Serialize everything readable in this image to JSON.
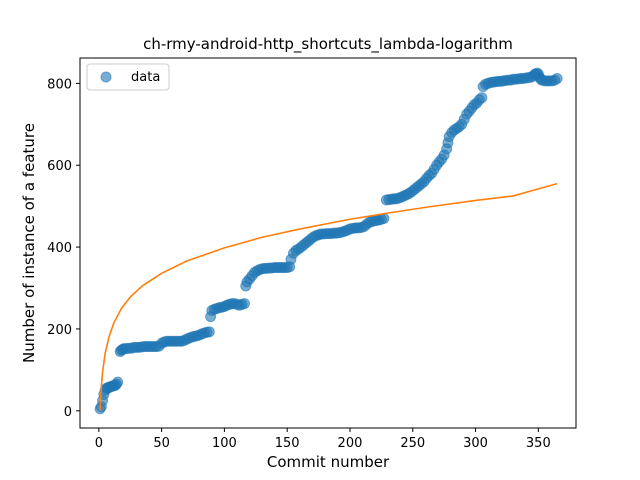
{
  "chart_data": {
    "type": "scatter",
    "title": "ch-rmy-android-http_shortcuts_lambda-logarithm",
    "xlabel": "Commit number",
    "ylabel": "Number of instance of a feature",
    "xlim": [
      -15,
      380
    ],
    "ylim": [
      -42,
      862
    ],
    "xticks": [
      0,
      50,
      100,
      150,
      200,
      250,
      300,
      350
    ],
    "yticks": [
      0,
      200,
      400,
      600,
      800
    ],
    "grid": false,
    "legend": {
      "position": "top-left",
      "entries": [
        "data"
      ]
    },
    "colors": {
      "data": "#1f77b4",
      "fit": "#ff7f0e"
    },
    "series": [
      {
        "name": "data",
        "marker": "circle",
        "points": [
          [
            1,
            5
          ],
          [
            2,
            10
          ],
          [
            3,
            25
          ],
          [
            4,
            40
          ],
          [
            5,
            50
          ],
          [
            6,
            55
          ],
          [
            7,
            55
          ],
          [
            8,
            58
          ],
          [
            9,
            58
          ],
          [
            10,
            60
          ],
          [
            11,
            60
          ],
          [
            12,
            62
          ],
          [
            13,
            62
          ],
          [
            14,
            65
          ],
          [
            15,
            70
          ],
          [
            17,
            145
          ],
          [
            18,
            148
          ],
          [
            19,
            150
          ],
          [
            20,
            152
          ],
          [
            22,
            152
          ],
          [
            24,
            153
          ],
          [
            26,
            153
          ],
          [
            28,
            155
          ],
          [
            30,
            155
          ],
          [
            32,
            155
          ],
          [
            34,
            156
          ],
          [
            36,
            157
          ],
          [
            38,
            157
          ],
          [
            40,
            157
          ],
          [
            42,
            157
          ],
          [
            44,
            157
          ],
          [
            46,
            157
          ],
          [
            48,
            158
          ],
          [
            50,
            165
          ],
          [
            52,
            168
          ],
          [
            54,
            170
          ],
          [
            56,
            170
          ],
          [
            58,
            170
          ],
          [
            60,
            170
          ],
          [
            62,
            170
          ],
          [
            64,
            170
          ],
          [
            66,
            170
          ],
          [
            68,
            172
          ],
          [
            70,
            175
          ],
          [
            72,
            178
          ],
          [
            74,
            180
          ],
          [
            76,
            182
          ],
          [
            78,
            183
          ],
          [
            80,
            185
          ],
          [
            82,
            188
          ],
          [
            84,
            190
          ],
          [
            86,
            192
          ],
          [
            88,
            193
          ],
          [
            89,
            230
          ],
          [
            90,
            245
          ],
          [
            92,
            248
          ],
          [
            94,
            250
          ],
          [
            96,
            252
          ],
          [
            98,
            253
          ],
          [
            100,
            255
          ],
          [
            102,
            258
          ],
          [
            104,
            260
          ],
          [
            106,
            262
          ],
          [
            108,
            262
          ],
          [
            110,
            260
          ],
          [
            112,
            258
          ],
          [
            114,
            260
          ],
          [
            116,
            262
          ],
          [
            117,
            305
          ],
          [
            118,
            315
          ],
          [
            120,
            322
          ],
          [
            122,
            330
          ],
          [
            124,
            338
          ],
          [
            126,
            342
          ],
          [
            128,
            345
          ],
          [
            130,
            347
          ],
          [
            132,
            348
          ],
          [
            134,
            348
          ],
          [
            136,
            349
          ],
          [
            138,
            349
          ],
          [
            140,
            350
          ],
          [
            142,
            350
          ],
          [
            144,
            350
          ],
          [
            146,
            350
          ],
          [
            148,
            350
          ],
          [
            150,
            350
          ],
          [
            152,
            352
          ],
          [
            153,
            370
          ],
          [
            155,
            385
          ],
          [
            157,
            392
          ],
          [
            159,
            395
          ],
          [
            161,
            400
          ],
          [
            163,
            405
          ],
          [
            165,
            410
          ],
          [
            167,
            415
          ],
          [
            169,
            420
          ],
          [
            171,
            425
          ],
          [
            173,
            428
          ],
          [
            175,
            430
          ],
          [
            177,
            432
          ],
          [
            179,
            432
          ],
          [
            181,
            433
          ],
          [
            183,
            433
          ],
          [
            185,
            433
          ],
          [
            187,
            434
          ],
          [
            189,
            434
          ],
          [
            191,
            435
          ],
          [
            193,
            436
          ],
          [
            195,
            438
          ],
          [
            197,
            440
          ],
          [
            199,
            443
          ],
          [
            201,
            445
          ],
          [
            203,
            446
          ],
          [
            205,
            447
          ],
          [
            207,
            447
          ],
          [
            209,
            448
          ],
          [
            211,
            450
          ],
          [
            213,
            455
          ],
          [
            215,
            460
          ],
          [
            217,
            462
          ],
          [
            219,
            464
          ],
          [
            221,
            465
          ],
          [
            223,
            466
          ],
          [
            225,
            468
          ],
          [
            227,
            470
          ],
          [
            229,
            515
          ],
          [
            231,
            516
          ],
          [
            233,
            517
          ],
          [
            235,
            518
          ],
          [
            237,
            518
          ],
          [
            239,
            520
          ],
          [
            241,
            522
          ],
          [
            243,
            525
          ],
          [
            245,
            528
          ],
          [
            247,
            531
          ],
          [
            249,
            535
          ],
          [
            251,
            540
          ],
          [
            253,
            545
          ],
          [
            255,
            550
          ],
          [
            257,
            555
          ],
          [
            259,
            560
          ],
          [
            261,
            568
          ],
          [
            263,
            575
          ],
          [
            265,
            580
          ],
          [
            267,
            590
          ],
          [
            269,
            600
          ],
          [
            271,
            608
          ],
          [
            273,
            615
          ],
          [
            275,
            625
          ],
          [
            277,
            640
          ],
          [
            278,
            655
          ],
          [
            279,
            670
          ],
          [
            281,
            680
          ],
          [
            283,
            686
          ],
          [
            285,
            690
          ],
          [
            287,
            694
          ],
          [
            289,
            700
          ],
          [
            291,
            712
          ],
          [
            293,
            725
          ],
          [
            295,
            732
          ],
          [
            297,
            740
          ],
          [
            299,
            748
          ],
          [
            301,
            752
          ],
          [
            303,
            760
          ],
          [
            305,
            765
          ],
          [
            306,
            792
          ],
          [
            308,
            798
          ],
          [
            310,
            800
          ],
          [
            312,
            802
          ],
          [
            314,
            803
          ],
          [
            316,
            804
          ],
          [
            318,
            805
          ],
          [
            320,
            805
          ],
          [
            322,
            806
          ],
          [
            324,
            807
          ],
          [
            326,
            808
          ],
          [
            328,
            808
          ],
          [
            330,
            810
          ],
          [
            332,
            810
          ],
          [
            334,
            811
          ],
          [
            336,
            812
          ],
          [
            338,
            812
          ],
          [
            340,
            813
          ],
          [
            342,
            814
          ],
          [
            344,
            815
          ],
          [
            346,
            818
          ],
          [
            347,
            822
          ],
          [
            348,
            823
          ],
          [
            349,
            825
          ],
          [
            350,
            823
          ],
          [
            351,
            815
          ],
          [
            352,
            810
          ],
          [
            353,
            808
          ],
          [
            355,
            806
          ],
          [
            357,
            806
          ],
          [
            359,
            806
          ],
          [
            361,
            806
          ],
          [
            363,
            808
          ],
          [
            365,
            812
          ]
        ]
      },
      {
        "name": "",
        "type": "line",
        "x": [
          1,
          2,
          3,
          5,
          8,
          12,
          18,
          25,
          35,
          50,
          70,
          100,
          130,
          160,
          200,
          230,
          260,
          300,
          330,
          365
        ],
        "y": [
          0,
          60,
          95,
          140,
          180,
          215,
          250,
          278,
          306,
          336,
          366,
          398,
          424,
          444,
          468,
          483,
          497,
          514,
          525,
          555
        ]
      }
    ]
  }
}
